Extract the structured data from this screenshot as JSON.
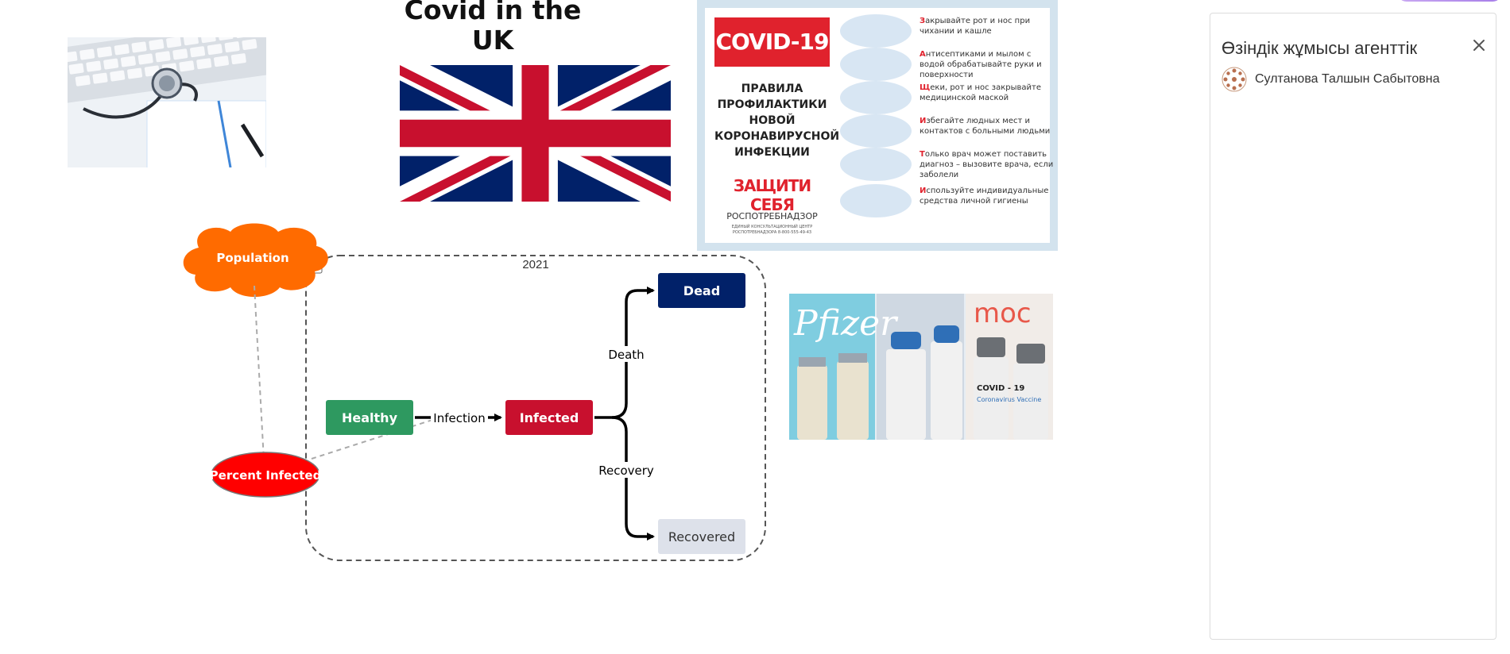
{
  "canvas": {
    "title": "Covid in the\nUK"
  },
  "poster": {
    "badge": "COVID-19",
    "rules_title": "ПРАВИЛА\nПРОФИЛАКТИКИ\nНОВОЙ\nКОРОНАВИРУСНОЙ\nИНФЕКЦИИ",
    "protect": "ЗАЩИТИ СЕБЯ",
    "org": "РОСПОТРЕБНАДЗОР",
    "org_sub": "ЕДИНЫЙ КОНСУЛЬТАЦИОННЫЙ ЦЕНТР\nРОСПОТРЕБНАДЗОРА 8-800-555-49-43",
    "items": [
      {
        "first": "З",
        "rest": "акрывайте рот и нос при чихании и кашле",
        "icon": "face-icon"
      },
      {
        "first": "А",
        "rest": "нтисептиками и мылом с водой обрабатывайте руки и поверхности",
        "icon": "hand-wash-icon"
      },
      {
        "first": "Щ",
        "rest": "еки, рот и нос закрывайте медицинской маской",
        "icon": "mask-icon"
      },
      {
        "first": "И",
        "rest": "збегайте людных мест и контактов с больными людьми",
        "icon": "crowd-icon"
      },
      {
        "first": "Т",
        "rest": "олько врач может поставить диагноз – вызовите врача, если заболели",
        "icon": "phone-doctor-icon"
      },
      {
        "first": "И",
        "rest": "спользуйте индивидуальные средства личной гигиены",
        "icon": "hygiene-icon"
      }
    ]
  },
  "vaccines": {
    "brand_left": "Pfizer",
    "brand_right": "moc",
    "vial_label": "COVID - 19",
    "vial_sub": "Coronavirus\nVaccine"
  },
  "diagram": {
    "population": "Population",
    "percent_infected": "Percent Infected",
    "group_label": "2021",
    "healthy": "Healthy",
    "infected": "Infected",
    "dead": "Dead",
    "recovered": "Recovered",
    "edge_infection": "Infection",
    "edge_death": "Death",
    "edge_recovery": "Recovery",
    "colors": {
      "population": "#ff6b00",
      "percent_infected": "#ff0000",
      "healthy": "#2e9960",
      "infected": "#c8102e",
      "dead": "#012169",
      "recovered": "#dde1ea"
    }
  },
  "panel": {
    "title": "Өзіндік жұмысы агенттік",
    "close_icon": "close-icon",
    "user_name": "Султанова Талшын Сабытовна"
  }
}
